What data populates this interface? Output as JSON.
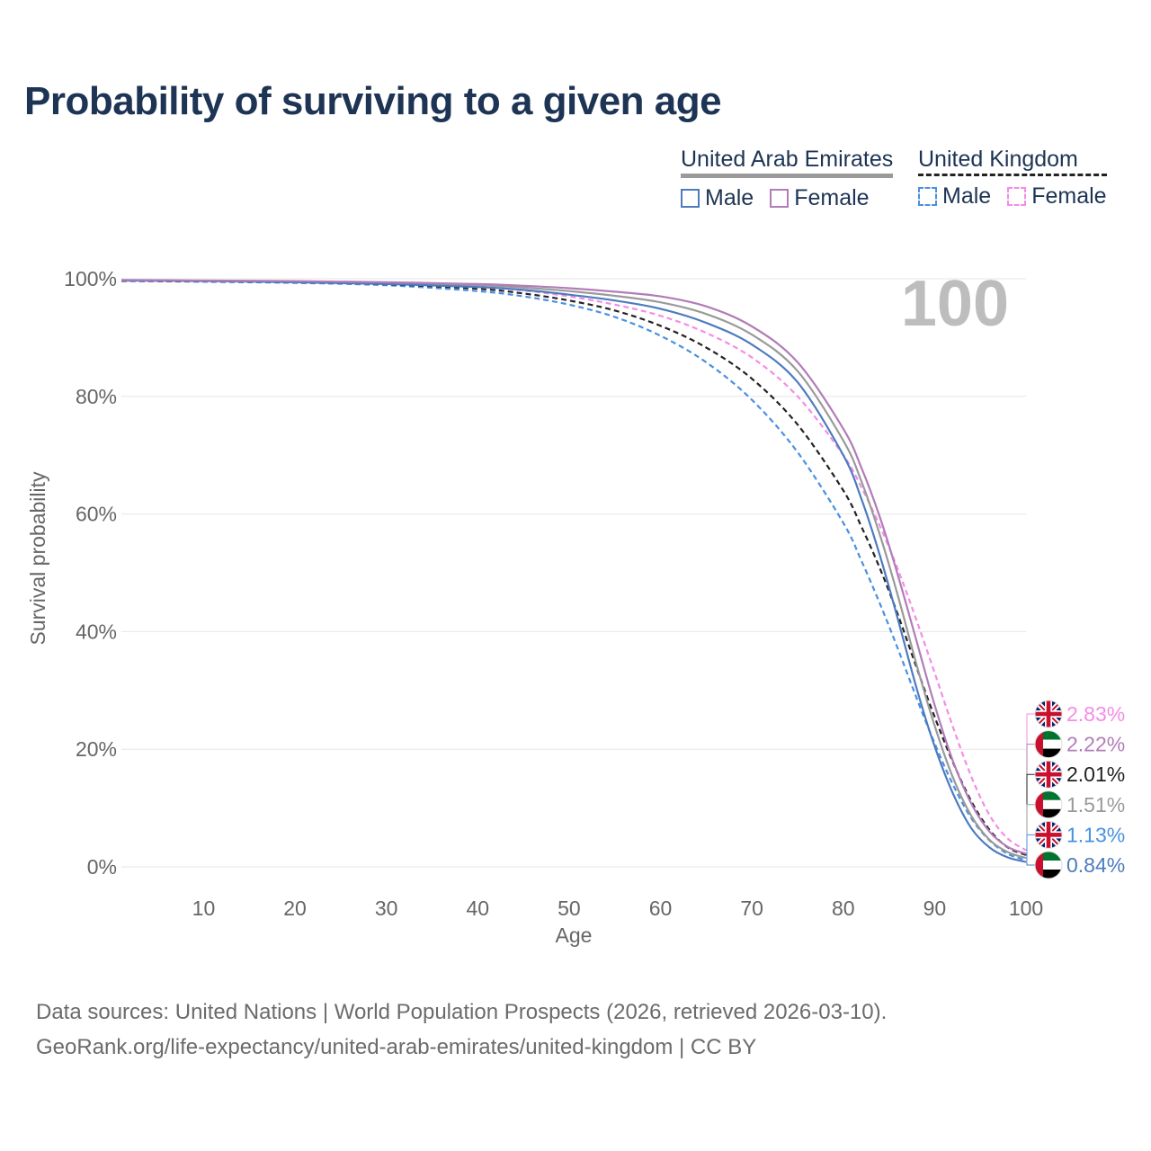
{
  "page": {
    "title": "Probability of surviving to a given age",
    "footer": {
      "line1": "Data sources: United Nations | World Population Prospects (2026, retrieved 2026-03-10).",
      "line2": "GeoRank.org/life-expectancy/united-arab-emirates/united-kingdom | CC BY"
    }
  },
  "legend": {
    "groups": [
      {
        "country": "United Arab Emirates",
        "items": [
          {
            "label": "Male",
            "color": "#4d7bbf",
            "dash": "solid"
          },
          {
            "label": "Female",
            "color": "#b27cb8",
            "dash": "solid"
          }
        ]
      },
      {
        "country": "United Kingdom",
        "items": [
          {
            "label": "Male",
            "color": "#4a90e2",
            "dash": "dashed"
          },
          {
            "label": "Female",
            "color": "#f48ce6",
            "dash": "dashed"
          }
        ]
      }
    ]
  },
  "chart_data": {
    "type": "line",
    "title": "Probability of surviving to a given age",
    "xlabel": "Age",
    "ylabel": "Survival probability",
    "xlim": [
      1,
      100
    ],
    "ylim": [
      0,
      100
    ],
    "x_ticks": [
      10,
      20,
      30,
      40,
      50,
      60,
      70,
      80,
      90,
      100
    ],
    "y_ticks": [
      0,
      20,
      40,
      60,
      80,
      100
    ],
    "y_tick_suffix": "%",
    "grid": true,
    "current_age_label": "100",
    "x": [
      1,
      10,
      20,
      30,
      40,
      45,
      50,
      55,
      60,
      65,
      70,
      75,
      80,
      82,
      84,
      86,
      88,
      90,
      92,
      94,
      96,
      98,
      100
    ],
    "series": [
      {
        "name": "United Arab Emirates Male",
        "country": "United Arab Emirates",
        "sex": "Male",
        "flag": "uae",
        "color": "#4d7bbf",
        "dash": "solid",
        "values": [
          99.7,
          99.6,
          99.4,
          99.1,
          98.6,
          98.1,
          97.3,
          96.3,
          94.9,
          92.5,
          88.8,
          82.4,
          70.0,
          62.5,
          53.0,
          42.0,
          30.5,
          20.5,
          12.5,
          6.6,
          3.3,
          1.6,
          0.84
        ],
        "end_label": "0.84%"
      },
      {
        "name": "United Arab Emirates Female",
        "country": "United Arab Emirates",
        "sex": "Female",
        "flag": "uae",
        "color": "#b27cb8",
        "dash": "solid",
        "values": [
          99.8,
          99.7,
          99.6,
          99.4,
          99.1,
          98.8,
          98.4,
          97.8,
          97.0,
          95.3,
          91.9,
          85.8,
          74.5,
          67.8,
          59.5,
          49.5,
          38.5,
          27.5,
          18.0,
          10.8,
          6.0,
          3.4,
          2.22
        ],
        "end_label": "2.22%"
      },
      {
        "name": "United Arab Emirates Both",
        "country": "United Arab Emirates",
        "sex": "Both",
        "flag": "uae",
        "color": "#9a9a9a",
        "dash": "solid",
        "values": [
          99.75,
          99.65,
          99.5,
          99.3,
          98.9,
          98.5,
          97.9,
          97.1,
          96.0,
          94.0,
          90.5,
          84.3,
          72.5,
          65.5,
          56.5,
          46.0,
          34.5,
          24.0,
          15.2,
          8.7,
          4.6,
          2.5,
          1.51
        ],
        "end_label": "1.51%"
      },
      {
        "name": "United Kingdom Male",
        "country": "United Kingdom",
        "sex": "Male",
        "flag": "uk",
        "color": "#4a90e2",
        "dash": "dashed",
        "values": [
          99.6,
          99.5,
          99.3,
          98.9,
          97.9,
          97.0,
          95.6,
          93.5,
          90.3,
          85.8,
          79.4,
          70.5,
          58.5,
          52.0,
          44.8,
          37.0,
          28.8,
          21.0,
          14.0,
          8.3,
          4.5,
          2.2,
          1.13
        ],
        "end_label": "1.13%"
      },
      {
        "name": "United Kingdom Female",
        "country": "United Kingdom",
        "sex": "Female",
        "flag": "uk",
        "color": "#f48ce6",
        "dash": "dashed",
        "values": [
          99.7,
          99.6,
          99.5,
          99.2,
          98.6,
          98.0,
          97.0,
          95.6,
          93.7,
          90.8,
          86.6,
          80.0,
          70.0,
          64.5,
          58.0,
          50.5,
          42.0,
          33.0,
          23.8,
          15.4,
          8.8,
          4.8,
          2.83
        ],
        "end_label": "2.83%"
      },
      {
        "name": "United Kingdom Both",
        "country": "United Kingdom",
        "sex": "Both",
        "flag": "uk",
        "color": "#222222",
        "dash": "dashed",
        "values": [
          99.65,
          99.55,
          99.4,
          99.05,
          98.3,
          97.5,
          96.3,
          94.6,
          92.0,
          88.3,
          83.0,
          75.2,
          64.0,
          57.8,
          50.8,
          42.8,
          34.0,
          25.5,
          17.8,
          11.2,
          6.3,
          3.3,
          2.01
        ],
        "end_label": "2.01%"
      }
    ]
  }
}
